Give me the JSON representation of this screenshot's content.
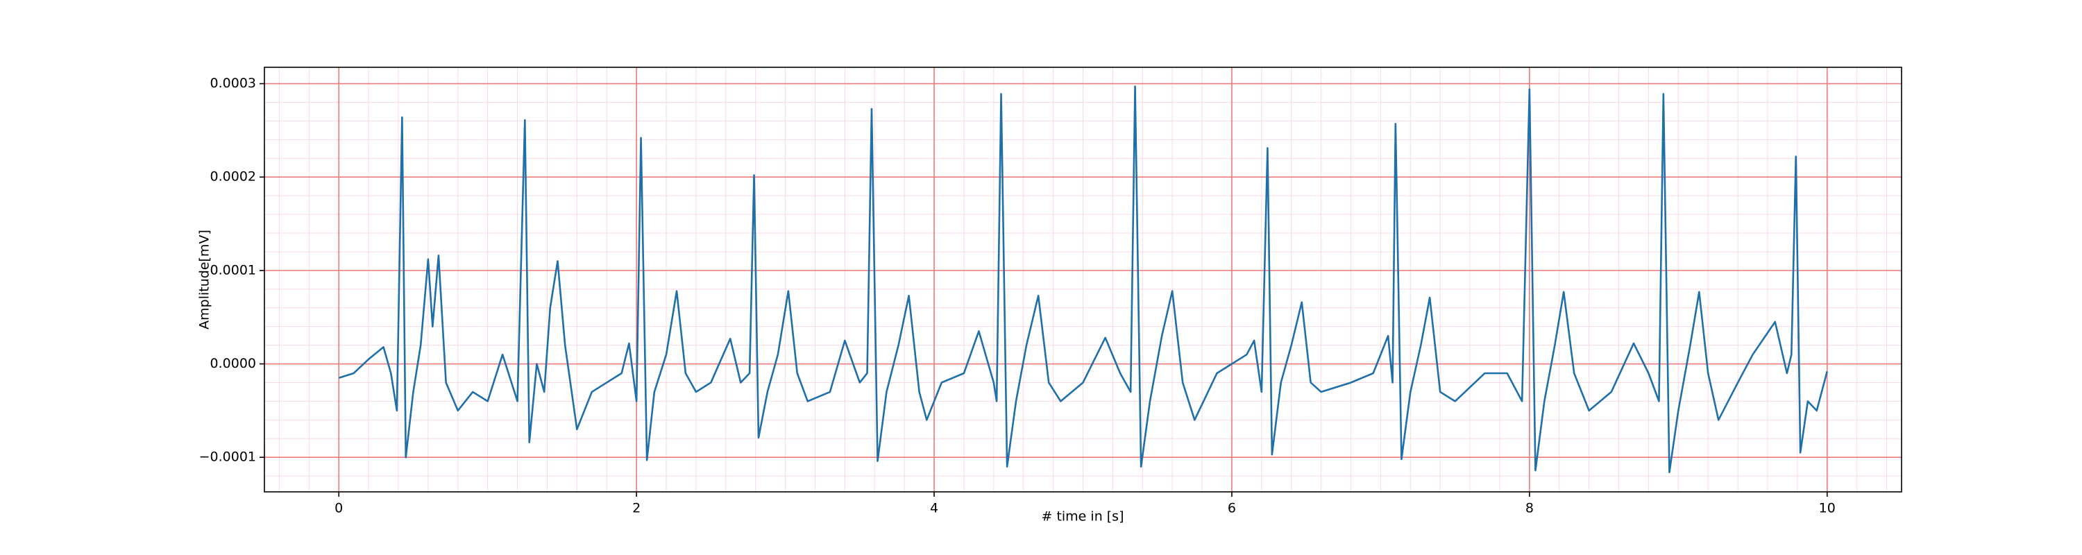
{
  "chart_data": {
    "type": "line",
    "xlabel": "# time in [s]",
    "ylabel": "Amplitude[mV]",
    "color": "#1f6fa8",
    "grid": true,
    "grid_color": "#f07a7a",
    "minor_grid": {
      "x_step": 0.2,
      "y_step": 2e-05,
      "color": "#fbd9e4"
    },
    "xlim": [
      -0.5,
      10.5
    ],
    "ylim": [
      -0.000137,
      0.0003175
    ],
    "xticks": [
      0,
      2,
      4,
      6,
      8,
      10
    ],
    "yticks": [
      {
        "value": -0.0001,
        "label": "−0.0001"
      },
      {
        "value": 0,
        "label": "0.0000"
      },
      {
        "value": 0.0001,
        "label": "0.0001"
      },
      {
        "value": 0.0002,
        "label": "0.0002"
      },
      {
        "value": 0.0003,
        "label": "0.0003"
      }
    ],
    "x": [
      0,
      0.1,
      0.2,
      0.3,
      0.35,
      0.39,
      0.425,
      0.45,
      0.5,
      0.55,
      0.6,
      0.63,
      0.67,
      0.72,
      0.8,
      0.9,
      1.0,
      1.1,
      1.2,
      1.25,
      1.28,
      1.33,
      1.38,
      1.42,
      1.47,
      1.52,
      1.6,
      1.7,
      1.8,
      1.9,
      1.95,
      2.0,
      2.03,
      2.07,
      2.12,
      2.2,
      2.27,
      2.33,
      2.4,
      2.5,
      2.63,
      2.7,
      2.76,
      2.79,
      2.82,
      2.88,
      2.95,
      3.02,
      3.08,
      3.15,
      3.3,
      3.4,
      3.5,
      3.55,
      3.58,
      3.62,
      3.68,
      3.76,
      3.83,
      3.9,
      3.95,
      4.05,
      4.2,
      4.3,
      4.4,
      4.42,
      4.45,
      4.49,
      4.55,
      4.62,
      4.7,
      4.77,
      4.85,
      5.0,
      5.15,
      5.25,
      5.32,
      5.35,
      5.39,
      5.45,
      5.53,
      5.6,
      5.67,
      5.75,
      5.9,
      6.0,
      6.1,
      6.15,
      6.2,
      6.24,
      6.27,
      6.33,
      6.4,
      6.47,
      6.53,
      6.6,
      6.8,
      6.95,
      7.05,
      7.08,
      7.1,
      7.14,
      7.2,
      7.27,
      7.33,
      7.4,
      7.5,
      7.7,
      7.85,
      7.95,
      8.0,
      8.04,
      8.1,
      8.17,
      8.23,
      8.3,
      8.4,
      8.55,
      8.7,
      8.8,
      8.87,
      8.9,
      8.94,
      9.0,
      9.08,
      9.14,
      9.2,
      9.27,
      9.4,
      9.5,
      9.65,
      9.73,
      9.76,
      9.79,
      9.82,
      9.87,
      9.93,
      10.0
    ],
    "values": [
      -1.5e-05,
      -1e-05,
      5e-06,
      1.8e-05,
      -1e-05,
      -5e-05,
      0.000264,
      -0.0001,
      -3e-05,
      2e-05,
      0.000112,
      4e-05,
      0.000116,
      -2e-05,
      -5e-05,
      -3e-05,
      -4e-05,
      1e-05,
      -4e-05,
      0.000261,
      -8.4e-05,
      0,
      -3e-05,
      6e-05,
      0.00011,
      2e-05,
      -7e-05,
      -3e-05,
      -2e-05,
      -1e-05,
      2.2e-05,
      -4e-05,
      0.000242,
      -0.000103,
      -3e-05,
      1e-05,
      7.8e-05,
      -1e-05,
      -3e-05,
      -2e-05,
      2.7e-05,
      -2e-05,
      -1e-05,
      0.000202,
      -7.9e-05,
      -3e-05,
      1e-05,
      7.8e-05,
      -1e-05,
      -4e-05,
      -3e-05,
      2.5e-05,
      -2e-05,
      -1e-05,
      0.000273,
      -0.000104,
      -3e-05,
      2e-05,
      7.3e-05,
      -3e-05,
      -6e-05,
      -2e-05,
      -1e-05,
      3.5e-05,
      -2e-05,
      -4e-05,
      0.000289,
      -0.00011,
      -4e-05,
      2e-05,
      7.3e-05,
      -2e-05,
      -4e-05,
      -2e-05,
      2.8e-05,
      -1e-05,
      -3e-05,
      0.000297,
      -0.00011,
      -4e-05,
      3e-05,
      7.8e-05,
      -2e-05,
      -6e-05,
      -1e-05,
      0,
      1e-05,
      2.5e-05,
      -3e-05,
      0.000231,
      -9.7e-05,
      -2e-05,
      2e-05,
      6.6e-05,
      -2e-05,
      -3e-05,
      -2e-05,
      -1e-05,
      3e-05,
      -2e-05,
      0.000257,
      -0.000102,
      -3e-05,
      2e-05,
      7.1e-05,
      -3e-05,
      -4e-05,
      -1e-05,
      -1e-05,
      -4e-05,
      0.000294,
      -0.000114,
      -4e-05,
      2e-05,
      7.7e-05,
      -1e-05,
      -5e-05,
      -3e-05,
      2.2e-05,
      -1e-05,
      -4e-05,
      0.000289,
      -0.000116,
      -5e-05,
      2e-05,
      7.7e-05,
      -1e-05,
      -6e-05,
      -2e-05,
      1e-05,
      4.5e-05,
      -1e-05,
      1e-05,
      0.000222,
      -9.5e-05,
      -4e-05,
      -5e-05,
      -8e-06
    ]
  }
}
